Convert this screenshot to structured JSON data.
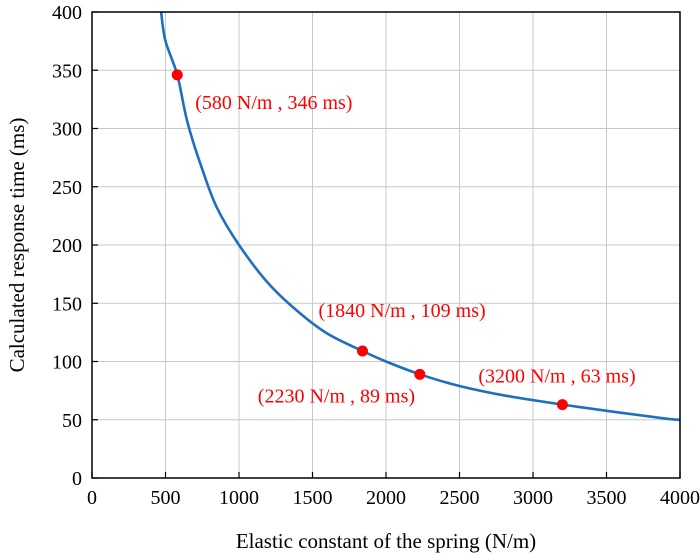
{
  "chart_data": {
    "type": "line",
    "title": "",
    "xlabel": "Elastic constant of the spring (N/m)",
    "ylabel": "Calculated response time (ms)",
    "xlim": [
      0,
      4000
    ],
    "ylim": [
      0,
      400
    ],
    "xticks": [
      0,
      500,
      1000,
      1500,
      2000,
      2500,
      3000,
      3500,
      4000
    ],
    "yticks": [
      0,
      50,
      100,
      150,
      200,
      250,
      300,
      350,
      400
    ],
    "grid": true,
    "series": [
      {
        "x": [
          470,
          500,
          580,
          650,
          750,
          850,
          1000,
          1200,
          1400,
          1600,
          1840,
          2000,
          2230,
          2500,
          2800,
          3200,
          3600,
          3900,
          4000
        ],
        "y": [
          400,
          375,
          346,
          305,
          265,
          232,
          200,
          167,
          143,
          124,
          109,
          100,
          89,
          79,
          71,
          63,
          56,
          51,
          50
        ],
        "color": "#1f6fc1"
      }
    ],
    "points": [
      {
        "x": 580,
        "y": 346,
        "label": "(580 N/m , 346 ms)"
      },
      {
        "x": 1840,
        "y": 109,
        "label": "(1840 N/m , 109 ms)"
      },
      {
        "x": 2230,
        "y": 89,
        "label": "(2230 N/m , 89 ms)"
      },
      {
        "x": 3200,
        "y": 63,
        "label": "(3200 N/m , 63 ms)"
      }
    ],
    "colors": {
      "line": "#1f6fc1",
      "points": "#ff0000",
      "annotations": "#ff0000",
      "grid": "#c8c8c8"
    }
  }
}
